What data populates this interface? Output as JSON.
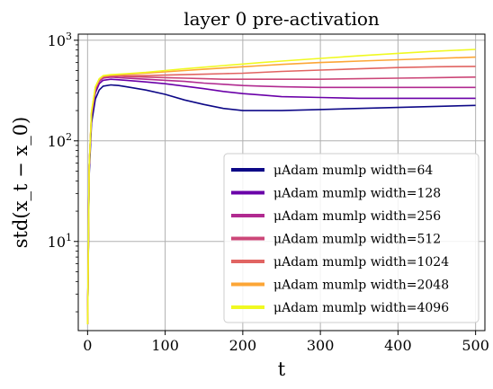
{
  "chart_data": {
    "type": "line",
    "title": "layer 0 pre-activation",
    "xlabel": "t",
    "ylabel": "std(x_t − x_0)",
    "yscale": "log",
    "xlim": [
      -12,
      512
    ],
    "ylim": [
      1.3,
      1150
    ],
    "x_ticks": [
      0,
      100,
      200,
      300,
      400,
      500
    ],
    "y_ticks": [
      {
        "value": 10,
        "base": "10",
        "exp": "1"
      },
      {
        "value": 100,
        "base": "10",
        "exp": "2"
      },
      {
        "value": 1000,
        "base": "10",
        "exp": "3"
      }
    ],
    "grid": true,
    "legend_position": "lower-right",
    "x": [
      0,
      2,
      5,
      10,
      15,
      20,
      30,
      40,
      50,
      75,
      100,
      125,
      150,
      175,
      200,
      225,
      250,
      300,
      350,
      400,
      450,
      500
    ],
    "series": [
      {
        "name": "μAdam mumlp width=64",
        "color": "#0d0887",
        "values": [
          1.5,
          45,
          150,
          260,
          320,
          350,
          360,
          355,
          345,
          320,
          290,
          255,
          230,
          210,
          200,
          200,
          200,
          205,
          210,
          215,
          220,
          225
        ]
      },
      {
        "name": "μAdam mumlp width=128",
        "color": "#6a00a8",
        "values": [
          1.5,
          50,
          170,
          300,
          370,
          400,
          410,
          405,
          400,
          385,
          370,
          350,
          330,
          310,
          295,
          285,
          275,
          270,
          265,
          265,
          265,
          265
        ]
      },
      {
        "name": "μAdam mumlp width=256",
        "color": "#b12a90",
        "values": [
          1.5,
          55,
          180,
          320,
          390,
          420,
          430,
          425,
          420,
          410,
          400,
          390,
          375,
          365,
          355,
          350,
          345,
          340,
          340,
          340,
          340,
          340
        ]
      },
      {
        "name": "μAdam mumlp width=512",
        "color": "#cc4778",
        "values": [
          1.5,
          55,
          185,
          330,
          400,
          430,
          440,
          440,
          435,
          430,
          425,
          420,
          415,
          410,
          410,
          410,
          410,
          410,
          415,
          420,
          425,
          430
        ]
      },
      {
        "name": "μAdam mumlp width=1024",
        "color": "#e16462",
        "values": [
          1.5,
          55,
          190,
          335,
          405,
          435,
          445,
          445,
          445,
          445,
          450,
          455,
          460,
          465,
          470,
          480,
          490,
          505,
          520,
          535,
          545,
          550
        ]
      },
      {
        "name": "μAdam mumlp width=2048",
        "color": "#fca636",
        "values": [
          1.5,
          55,
          190,
          340,
          410,
          440,
          450,
          455,
          460,
          470,
          485,
          500,
          515,
          530,
          545,
          560,
          575,
          600,
          620,
          640,
          660,
          680
        ]
      },
      {
        "name": "μAdam mumlp width=4096",
        "color": "#f0f921",
        "values": [
          1.5,
          55,
          195,
          345,
          415,
          445,
          455,
          460,
          465,
          480,
          500,
          520,
          540,
          560,
          580,
          600,
          620,
          660,
          700,
          740,
          780,
          810
        ]
      }
    ]
  }
}
